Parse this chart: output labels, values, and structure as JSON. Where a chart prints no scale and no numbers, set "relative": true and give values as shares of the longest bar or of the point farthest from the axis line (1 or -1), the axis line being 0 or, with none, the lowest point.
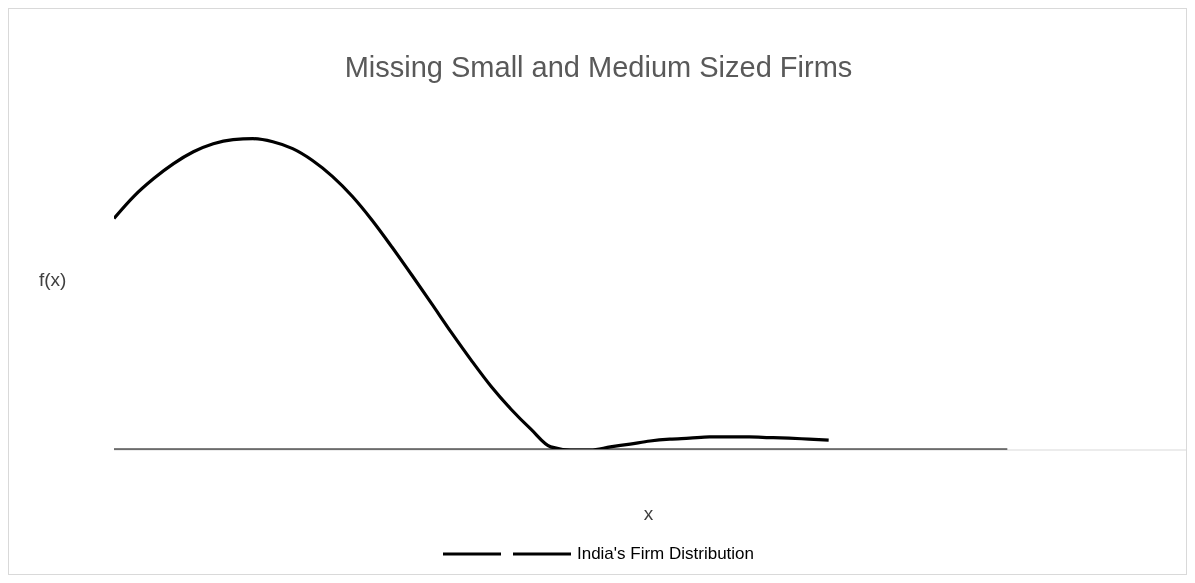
{
  "chart_data": {
    "type": "line",
    "title": "Missing Small and Medium Sized Firms",
    "xlabel": "x",
    "ylabel": "f(x)",
    "relative": true,
    "legend": "bottom",
    "grid": false,
    "marker": "none",
    "line_style": "solid",
    "categories": [
      null,
      null,
      null,
      null,
      null,
      null,
      null,
      null,
      null,
      null,
      null,
      null,
      null,
      null,
      null,
      null,
      null,
      null,
      null,
      null,
      null,
      null,
      null,
      null,
      null,
      null,
      null,
      null,
      null,
      null,
      null,
      null,
      null,
      null,
      null,
      null,
      null,
      null,
      null,
      null,
      null,
      null,
      null,
      null,
      null,
      null,
      null,
      null,
      null,
      null,
      null,
      null,
      null,
      null,
      null
    ],
    "series": [
      {
        "color": "#000000",
        "values": [
          0,
          0,
          0,
          0,
          0,
          0,
          0,
          0,
          0,
          0,
          0,
          0,
          0,
          0,
          0,
          0,
          0,
          0,
          0,
          0,
          0,
          0,
          0,
          0,
          0,
          0,
          0,
          0,
          0,
          0,
          0,
          0,
          0,
          0,
          0,
          0,
          0,
          0,
          0,
          0,
          0,
          0,
          0,
          0,
          0,
          0,
          null,
          null,
          null,
          null,
          null,
          null,
          null,
          null,
          null
        ]
      },
      {
        "name": "India's Firm Distribution",
        "color": "#000000",
        "values": [
          0.744,
          0.815,
          0.872,
          0.92,
          0.958,
          0.984,
          0.997,
          1,
          0.99,
          0.968,
          0.93,
          0.879,
          0.815,
          0.738,
          0.652,
          0.562,
          0.47,
          0.377,
          0.288,
          0.204,
          0.131,
          0.067,
          0.01,
          0,
          0,
          0.01,
          0.019,
          0.029,
          0.035,
          0.038,
          0.042,
          0.042,
          0.042,
          0.04,
          0.038,
          0.035,
          0.032,
          null,
          null,
          null,
          null,
          null,
          null,
          null,
          null,
          null,
          null,
          null,
          null,
          null,
          null,
          null,
          null,
          null,
          null
        ]
      }
    ]
  }
}
